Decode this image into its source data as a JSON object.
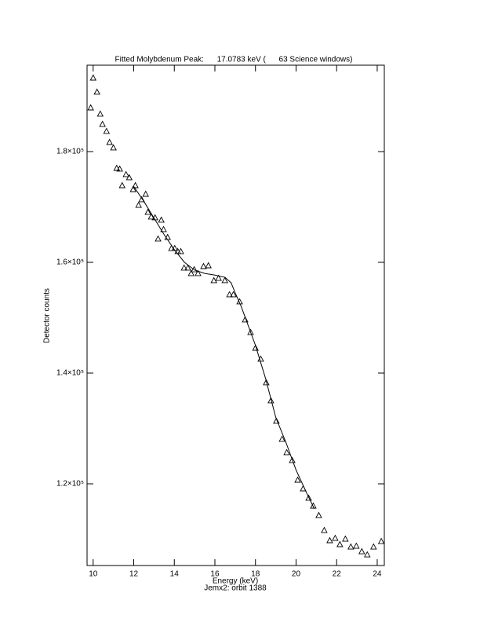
{
  "chart_data": {
    "type": "scatter",
    "title": "Fitted Molybdenum Peak:      17.0783 keV (      63 Science windows)",
    "x_label": "Energy (keV)",
    "subtitle": "Jemx2: orbit 1388",
    "y_label": "Detector counts",
    "xlim": [
      9.7,
      24.35
    ],
    "ylim": [
      105250,
      195600
    ],
    "xticks": [
      10,
      12,
      14,
      16,
      18,
      20,
      22,
      24
    ],
    "yticks": [
      {
        "value": 120000,
        "label": "1.2×10⁵"
      },
      {
        "value": 140000,
        "label": "1.4×10⁵"
      },
      {
        "value": 160000,
        "label": "1.6×10⁵"
      },
      {
        "value": 180000,
        "label": "1.8×10⁵"
      }
    ],
    "series": [
      {
        "type": "scatter",
        "marker": "triangle",
        "color": "#000000",
        "x": [
          9.88,
          10.0,
          10.19,
          10.35,
          10.46,
          10.66,
          10.81,
          11.0,
          11.16,
          11.31,
          11.43,
          11.62,
          11.78,
          11.97,
          12.08,
          12.24,
          12.39,
          12.59,
          12.7,
          12.86,
          13.05,
          13.2,
          13.36,
          13.47,
          13.67,
          13.86,
          14.02,
          14.17,
          14.32,
          14.48,
          14.67,
          14.83,
          14.98,
          15.17,
          15.44,
          15.68,
          15.95,
          16.18,
          16.49,
          16.72,
          16.91,
          17.22,
          17.49,
          17.76,
          18.0,
          18.26,
          18.53,
          18.76,
          19.03,
          19.31,
          19.54,
          19.81,
          20.08,
          20.35,
          20.62,
          20.85,
          21.12,
          21.39,
          21.66,
          21.93,
          22.16,
          22.43,
          22.7,
          22.97,
          23.24,
          23.51,
          23.82,
          24.2
        ],
        "values": [
          187940,
          193330,
          190780,
          186810,
          184960,
          183690,
          181700,
          180710,
          177020,
          176880,
          173900,
          175890,
          175320,
          173190,
          173900,
          170350,
          171350,
          172340,
          169080,
          168230,
          168090,
          164260,
          167660,
          165960,
          164540,
          162550,
          162550,
          161990,
          161990,
          159010,
          159010,
          158020,
          158720,
          158020,
          159290,
          159430,
          156740,
          157160,
          156740,
          154190,
          154190,
          152910,
          149650,
          147380,
          144540,
          142560,
          138300,
          135040,
          131350,
          128090,
          125680,
          124260,
          120710,
          119150,
          117450,
          116030,
          114330,
          111630,
          109790,
          110210,
          109080,
          110070,
          108650,
          108790,
          107800,
          107230,
          108650,
          109640
        ]
      },
      {
        "type": "line",
        "color": "#000000",
        "x": [
          12.0,
          12.5,
          13.0,
          13.5,
          14.0,
          14.5,
          15.0,
          15.5,
          16.0,
          16.5,
          16.8,
          17.0,
          17.3,
          17.6,
          18.0,
          18.5,
          19.0,
          19.5,
          20.0,
          20.5,
          20.9
        ],
        "values": [
          173700,
          171000,
          168000,
          165000,
          162300,
          160000,
          158600,
          158000,
          157700,
          157300,
          156300,
          154500,
          152000,
          149000,
          145000,
          139000,
          132000,
          127500,
          122500,
          118500,
          115500
        ]
      }
    ]
  }
}
